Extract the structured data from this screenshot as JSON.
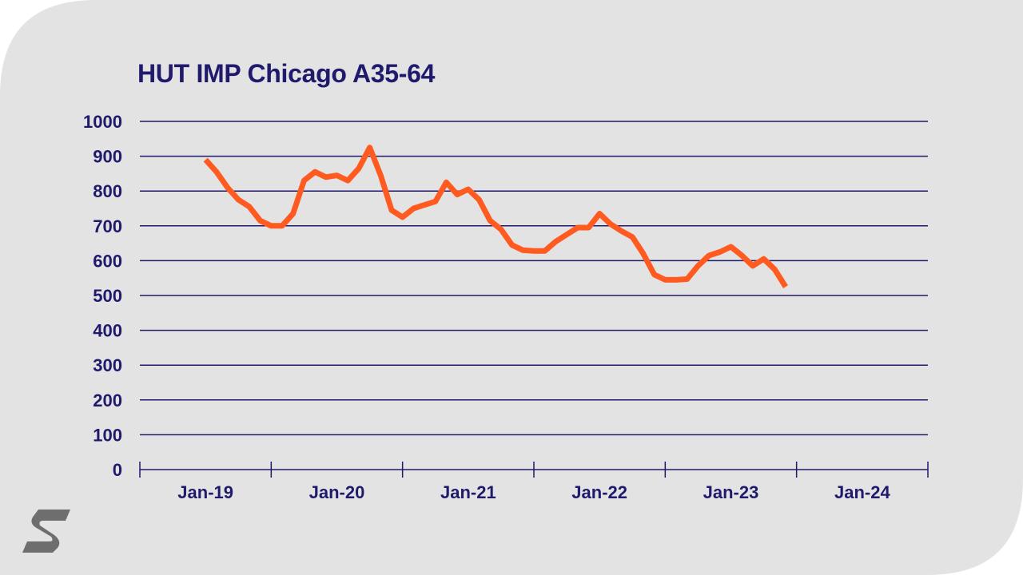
{
  "colors": {
    "background": "#e3e3e3",
    "text": "#1f1a6b",
    "grid": "#1f1a6b",
    "line": "#ff5a1f",
    "logo": "#6e6e6e"
  },
  "logo": {
    "icon": "s-brand-logo-icon"
  },
  "chart_data": {
    "type": "line",
    "title": "HUT IMP Chicago A35-64",
    "xlabel": "",
    "ylabel": "",
    "ylim": [
      0,
      1000
    ],
    "yticks": [
      "0",
      "100",
      "200",
      "300",
      "400",
      "500",
      "600",
      "700",
      "800",
      "900",
      "1000"
    ],
    "xticks": [
      "Jan-19",
      "Jan-20",
      "Jan-21",
      "Jan-22",
      "Jan-23",
      "Jan-24"
    ],
    "xlim_months": [
      -6,
      66
    ],
    "grid": true,
    "series": [
      {
        "name": "HUT IMP Chicago A35-64",
        "x_months": [
          0,
          1,
          2,
          3,
          4,
          5,
          6,
          7,
          8,
          9,
          10,
          11,
          12,
          13,
          14,
          15,
          16,
          17,
          18,
          19,
          20,
          21,
          22,
          23,
          24,
          25,
          26,
          27,
          28,
          29,
          30,
          31,
          32,
          33,
          34,
          35,
          36,
          37,
          38,
          39,
          40,
          41,
          42,
          43,
          44,
          45,
          46,
          47,
          48,
          49,
          50,
          51,
          52,
          53,
          54,
          55,
          56,
          57
        ],
        "values": [
          890,
          855,
          810,
          775,
          755,
          715,
          700,
          700,
          735,
          830,
          855,
          840,
          845,
          830,
          865,
          925,
          845,
          745,
          725,
          750,
          760,
          770,
          825,
          790,
          805,
          775,
          715,
          690,
          645,
          630,
          628,
          628,
          655,
          675,
          695,
          695,
          735,
          705,
          685,
          668,
          620,
          560,
          545,
          545,
          547,
          585,
          615,
          625,
          640,
          615,
          585,
          605,
          575,
          525,
          null,
          null,
          null,
          null
        ]
      }
    ]
  }
}
